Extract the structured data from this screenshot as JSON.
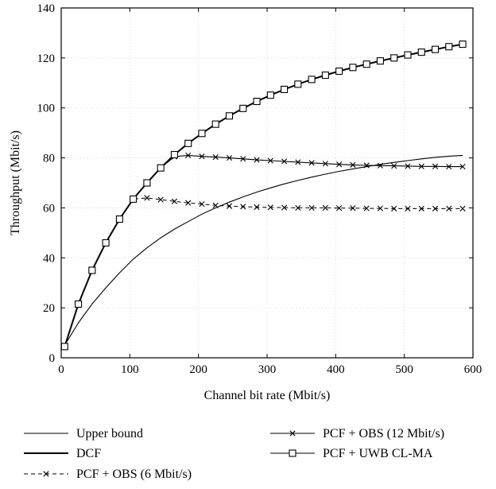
{
  "chart_data": {
    "type": "line",
    "xlabel": "Channel bit rate (Mbit/s)",
    "ylabel": "Throughput (Mbit/s)",
    "xlim": [
      0,
      600
    ],
    "ylim": [
      0,
      140
    ],
    "xticks": [
      0,
      100,
      200,
      300,
      400,
      500,
      600
    ],
    "yticks": [
      0,
      20,
      40,
      60,
      80,
      100,
      120,
      140
    ],
    "grid": true,
    "legend_position": "bottom",
    "series": [
      {
        "name": "Upper bound",
        "style": "thin-solid",
        "marker": "none",
        "color": "#000000",
        "x": [
          5,
          25,
          45,
          65,
          85,
          105,
          125,
          145,
          165,
          185,
          205,
          225,
          245,
          265,
          285,
          305,
          325,
          345,
          365,
          385,
          405,
          425,
          445,
          465,
          485,
          505,
          525,
          545,
          565,
          585
        ],
        "y": [
          5,
          14,
          21.5,
          28,
          34,
          39.5,
          44,
          48,
          51.5,
          54.5,
          57.5,
          60,
          62.3,
          64.4,
          66.3,
          68,
          69.6,
          71,
          72.3,
          73.5,
          74.6,
          75.6,
          76.5,
          77.4,
          78.2,
          78.9,
          79.6,
          80.2,
          80.7,
          81
        ]
      },
      {
        "name": "DCF",
        "style": "thick-solid",
        "marker": "none",
        "color": "#000000",
        "x": [
          5,
          25,
          45,
          65,
          85,
          105,
          125,
          145,
          165,
          185,
          205,
          225,
          245,
          265,
          285,
          305,
          325,
          345,
          365,
          385,
          405,
          425,
          445,
          465,
          485,
          505,
          525,
          545,
          565,
          585
        ],
        "y": [
          4.5,
          21.5,
          35,
          46,
          55.5,
          63.5,
          70,
          76,
          81.3,
          85.8,
          89.8,
          93.5,
          96.8,
          99.8,
          102.6,
          105.1,
          107.4,
          109.5,
          111.4,
          113.1,
          114.7,
          116.2,
          117.5,
          118.8,
          120,
          121.2,
          122.3,
          123.4,
          124.5,
          125.5
        ]
      },
      {
        "name": "PCF + OBS (6 Mbit/s)",
        "style": "dashed",
        "marker": "x",
        "color": "#000000",
        "x": [
          5,
          25,
          45,
          65,
          85,
          105,
          125,
          145,
          165,
          185,
          205,
          225,
          245,
          265,
          285,
          305,
          325,
          345,
          365,
          385,
          405,
          425,
          445,
          465,
          485,
          505,
          525,
          545,
          565,
          585
        ],
        "y": [
          4.5,
          21.5,
          35,
          46,
          55.5,
          63.5,
          64,
          63.3,
          62.6,
          62,
          61.5,
          61,
          60.7,
          60.5,
          60.3,
          60.2,
          60.1,
          60,
          60,
          60,
          59.9,
          59.9,
          59.8,
          59.8,
          59.7,
          59.7,
          59.7,
          59.7,
          59.7,
          59.7
        ]
      },
      {
        "name": "PCF + OBS (12 Mbit/s)",
        "style": "solid",
        "marker": "x",
        "color": "#000000",
        "x": [
          5,
          25,
          45,
          65,
          85,
          105,
          125,
          145,
          165,
          185,
          205,
          225,
          245,
          265,
          285,
          305,
          325,
          345,
          365,
          385,
          405,
          425,
          445,
          465,
          485,
          505,
          525,
          545,
          565,
          585
        ],
        "y": [
          4.5,
          21.5,
          35,
          46,
          55.5,
          63.5,
          70,
          76,
          80.5,
          81,
          80.6,
          80.3,
          80,
          79.6,
          79.2,
          78.9,
          78.6,
          78.3,
          78,
          77.7,
          77.4,
          77.2,
          77,
          76.9,
          76.8,
          76.7,
          76.6,
          76.6,
          76.5,
          76.5
        ]
      },
      {
        "name": "PCF + UWB CL-MA",
        "style": "solid",
        "marker": "square",
        "color": "#000000",
        "x": [
          5,
          25,
          45,
          65,
          85,
          105,
          125,
          145,
          165,
          185,
          205,
          225,
          245,
          265,
          285,
          305,
          325,
          345,
          365,
          385,
          405,
          425,
          445,
          465,
          485,
          505,
          525,
          545,
          565,
          585
        ],
        "y": [
          4.5,
          21.5,
          35,
          46,
          55.5,
          63.5,
          70,
          76,
          81.3,
          85.8,
          89.8,
          93.5,
          96.8,
          99.8,
          102.6,
          105.1,
          107.4,
          109.5,
          111.4,
          113.1,
          114.7,
          116.2,
          117.5,
          118.8,
          120,
          121.2,
          122.3,
          123.4,
          124.5,
          125.5
        ]
      }
    ]
  }
}
